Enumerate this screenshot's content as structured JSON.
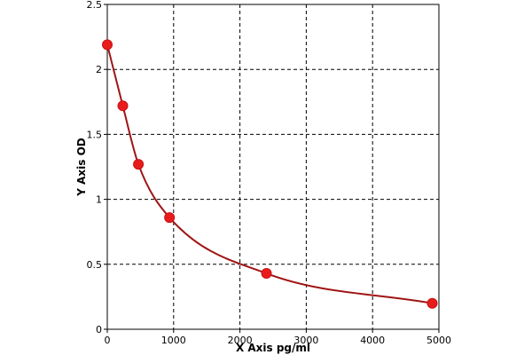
{
  "chart_data": {
    "type": "scatter",
    "xlabel": "X Axis pg/ml",
    "ylabel": "Y Axis OD",
    "xlim": [
      0,
      5000
    ],
    "ylim": [
      0,
      2.5
    ],
    "x_ticks": [
      "0",
      "1000",
      "2000",
      "3000",
      "4000",
      "5000"
    ],
    "y_ticks": [
      "0",
      "0.5",
      "1",
      "1.5",
      "2",
      "2.5"
    ],
    "grid": true,
    "legend": "none",
    "series": [
      {
        "x": [
          0,
          234,
          469,
          938,
          2400,
          4900
        ],
        "y": [
          2.19,
          1.72,
          1.27,
          0.86,
          0.43,
          0.2
        ],
        "color": "#e81c1c",
        "line_color": "#a01414"
      }
    ]
  }
}
